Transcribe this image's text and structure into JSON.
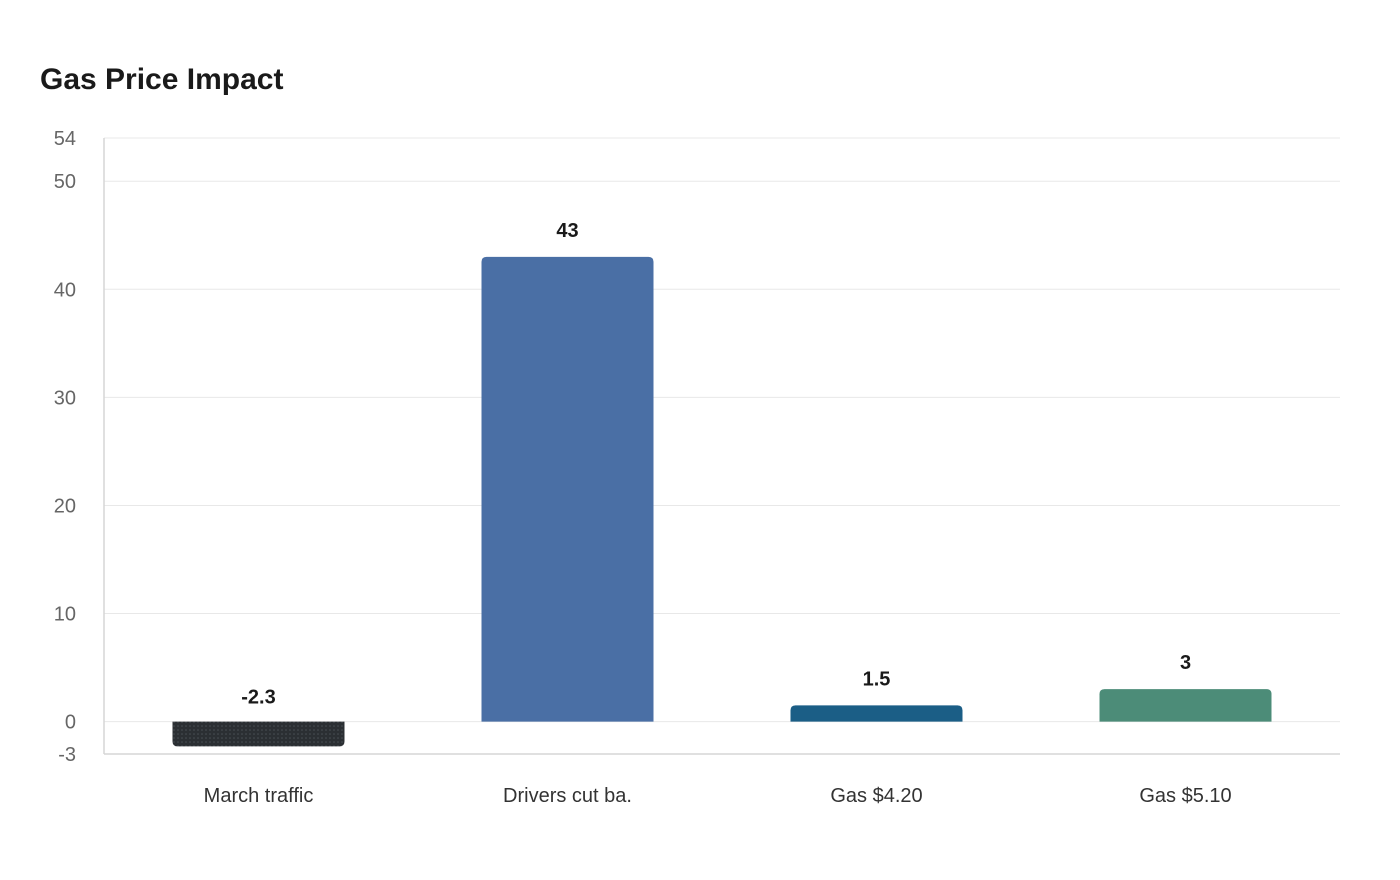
{
  "chart_data": {
    "type": "bar",
    "title": "Gas Price Impact",
    "xlabel": "",
    "ylabel": "",
    "categories": [
      "March traffic",
      "Drivers cut ba.",
      "Gas $4.20",
      "Gas $5.10"
    ],
    "values": [
      -2.3,
      43,
      1.5,
      3
    ],
    "data_labels": [
      "-2.3",
      "43",
      "1.5",
      "3"
    ],
    "colors": [
      "#2b2f33",
      "#4a6fa5",
      "#1b5e86",
      "#4c8c78"
    ],
    "ylim": [
      -3,
      54
    ],
    "yticks": [
      -3,
      0,
      10,
      20,
      30,
      40,
      50,
      54
    ],
    "grid": true,
    "legend": "none"
  }
}
